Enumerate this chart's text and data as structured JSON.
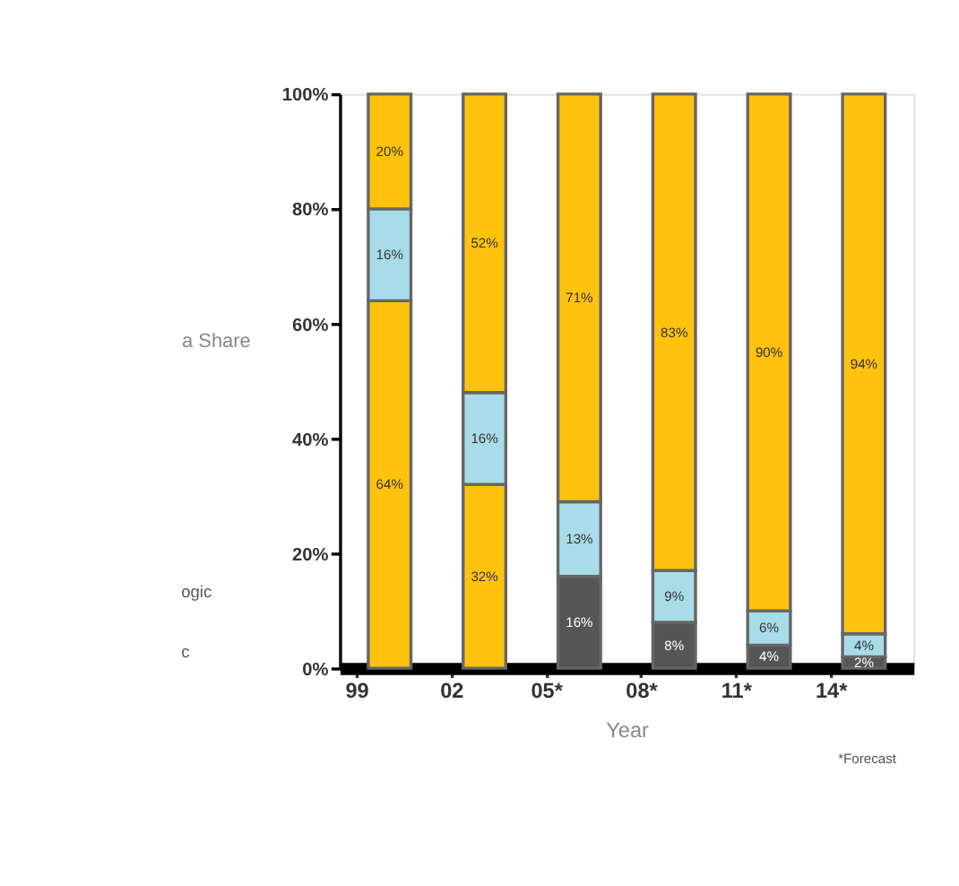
{
  "chart_data": {
    "type": "bar",
    "stacked": true,
    "xlabel": "Year",
    "ylabel": "a Share",
    "categories": [
      "99",
      "02",
      "05*",
      "08*",
      "11*",
      "14*"
    ],
    "series": [
      {
        "colors": [
          "#ffc20e",
          "#ffc20e",
          "#555555",
          "#555555",
          "#555555",
          "#555555"
        ],
        "values": [
          64,
          32,
          16,
          8,
          4,
          2
        ],
        "value_labels": [
          "64%",
          "32%",
          "16%",
          "8%",
          "4%",
          "2%"
        ]
      },
      {
        "color": "#a8dce8",
        "values": [
          16,
          16,
          13,
          9,
          6,
          4
        ],
        "value_labels": [
          "16%",
          "16%",
          "13%",
          "9%",
          "6%",
          "4%"
        ]
      },
      {
        "color": "#ffc20e",
        "values": [
          20,
          52,
          71,
          83,
          90,
          94
        ],
        "value_labels": [
          "20%",
          "52%",
          "71%",
          "83%",
          "90%",
          "94%"
        ]
      }
    ],
    "ylim": [
      0,
      100
    ],
    "yticks": [
      {
        "value": 0,
        "label": "0%"
      },
      {
        "value": 20,
        "label": "20%"
      },
      {
        "value": 40,
        "label": "40%"
      },
      {
        "value": 60,
        "label": "60%"
      },
      {
        "value": 80,
        "label": "80%"
      },
      {
        "value": 100,
        "label": "100%"
      }
    ],
    "grid": false,
    "annotations": [
      "ogic",
      "c",
      "*Forecast"
    ]
  }
}
